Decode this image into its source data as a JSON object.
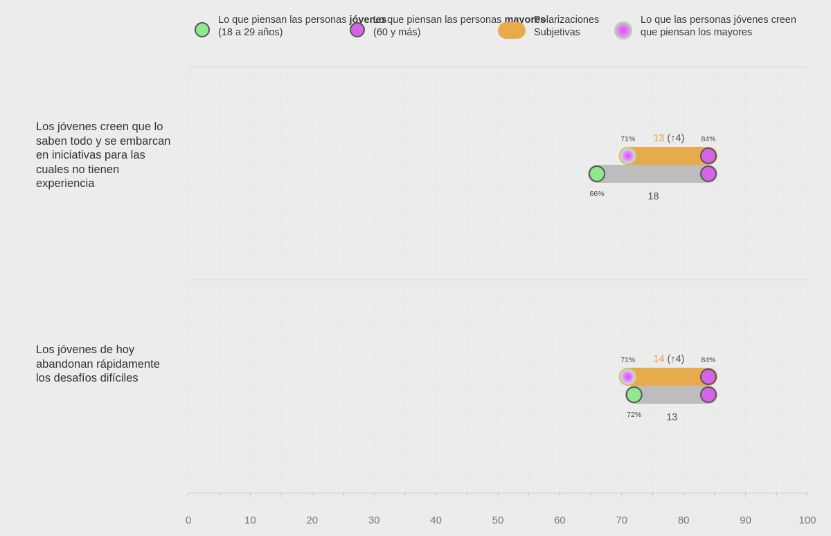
{
  "legend": {
    "young": {
      "pre": "Lo que piensan las personas ",
      "bold": "jóvenes",
      "post": "(18 a 29 años)"
    },
    "old": {
      "pre": "Lo que piensan las personas ",
      "bold": "mayores",
      "post": "(60 y más)"
    },
    "polar": {
      "text": "Polarizaciones Subjetivas"
    },
    "perceived": {
      "text": "Lo que las personas jóvenes creen que piensan los mayores"
    }
  },
  "colors": {
    "young": "#90e98c",
    "old": "#d466e6",
    "polar": "#e8ab4c",
    "gap": "#bdbdbd",
    "grid": "#d6d6d6",
    "axis_text": "#777777",
    "polar_text": "#e5a43c"
  },
  "chart_data": {
    "type": "dumbbell",
    "xlim": [
      0,
      100
    ],
    "x_ticks": [
      "0",
      "10",
      "20",
      "30",
      "40",
      "50",
      "60",
      "70",
      "80",
      "90",
      "100"
    ],
    "rows": [
      {
        "label": "Los jóvenes creen que lo saben todo y se embarcan en iniciativas para las cuales no tienen experiencia",
        "young": 66,
        "young_label": "66%",
        "old": 84,
        "old_label": "84%",
        "perceived": 71,
        "perceived_label": "71%",
        "gap": 18,
        "gap_label": "18",
        "polarization": 13,
        "polarization_label": "13",
        "change_label": "(↑4)"
      },
      {
        "label": "Los jóvenes de hoy abandonan rápidamente los desafíos difíciles",
        "young": 72,
        "young_label": "72%",
        "old": 84,
        "old_label": "84%",
        "perceived": 71,
        "perceived_label": "71%",
        "gap": 13,
        "gap_label": "13",
        "polarization": 14,
        "polarization_label": "14",
        "change_label": "(↑4)"
      }
    ]
  }
}
